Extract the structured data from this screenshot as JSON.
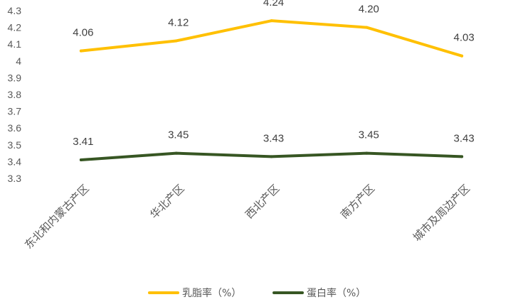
{
  "chart_data": {
    "type": "line",
    "title": "",
    "xlabel": "",
    "ylabel": "",
    "categories": [
      "东北和内蒙古产区",
      "华北产区",
      "西北产区",
      "南方产区",
      "城市及周边产区"
    ],
    "ylim": [
      3.3,
      4.3
    ],
    "yticks": [
      "3.3",
      "3.4",
      "3.5",
      "3.6",
      "3.7",
      "3.8",
      "3.9",
      "4",
      "4.1",
      "4.2",
      "4.3"
    ],
    "grid": false,
    "legend_position": "bottom",
    "series": [
      {
        "name": "乳脂率（%）",
        "color": "#FFC000",
        "values": [
          4.06,
          4.12,
          4.24,
          4.2,
          4.03
        ],
        "labels": [
          "4.06",
          "4.12",
          "4.24",
          "4.20",
          "4.03"
        ]
      },
      {
        "name": "蛋白率（%）",
        "color": "#375623",
        "values": [
          3.41,
          3.45,
          3.43,
          3.45,
          3.43
        ],
        "labels": [
          "3.41",
          "3.45",
          "3.43",
          "3.45",
          "3.43"
        ]
      }
    ]
  }
}
